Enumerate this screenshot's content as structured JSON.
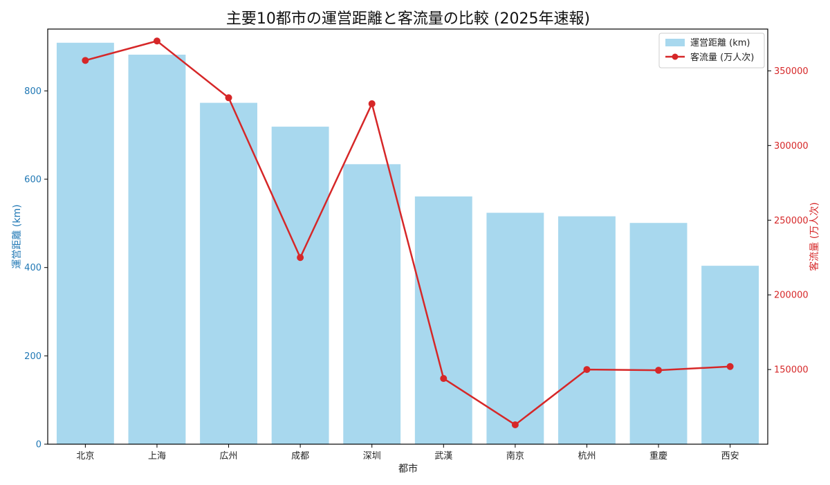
{
  "chart_data": {
    "type": "bar",
    "title": "主要10都市の運営距離と客流量の比較 (2025年速報)",
    "xlabel": "都市",
    "ylabel_left": "運営距離 (km)",
    "ylabel_right": "客流量 (万人次)",
    "categories": [
      "北京",
      "上海",
      "広州",
      "成都",
      "深圳",
      "武漢",
      "南京",
      "杭州",
      "重慶",
      "西安"
    ],
    "series": [
      {
        "name": "運営距離 (km)",
        "type": "bar",
        "axis": "left",
        "color": "#a8d8ee",
        "values": [
          909,
          882,
          773,
          719,
          634,
          561,
          524,
          516,
          501,
          404
        ]
      },
      {
        "name": "客流量 (万人次)",
        "type": "line",
        "axis": "right",
        "color": "#d62728",
        "values": [
          357000,
          370000,
          332000,
          225000,
          328000,
          144000,
          113000,
          150000,
          149500,
          152000
        ]
      }
    ],
    "ylim_left": [
      0,
      940
    ],
    "yticks_left": [
      0,
      200,
      400,
      600,
      800
    ],
    "ylim_right": [
      100000,
      378000
    ],
    "yticks_right": [
      150000,
      200000,
      250000,
      300000,
      350000
    ],
    "left_axis_color": "#1f77b4",
    "right_axis_color": "#d62728",
    "legend_position": "top-right",
    "grid": false
  }
}
